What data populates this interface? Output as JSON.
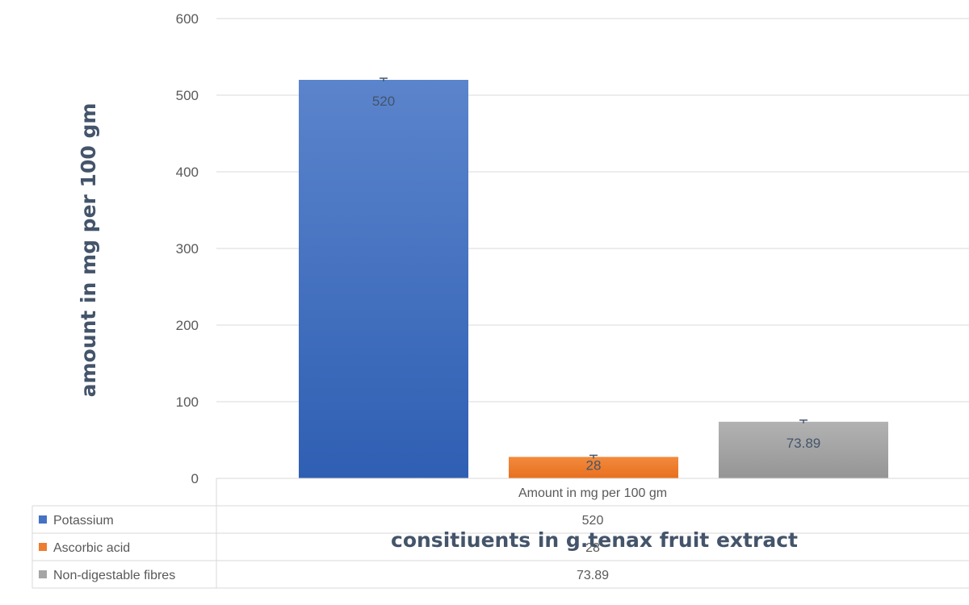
{
  "chart_data": {
    "type": "bar",
    "title": "",
    "ylabel": "amount in mg per 100 gm",
    "xlabel": "consitiuents in g.tenax fruit extract",
    "ylim": [
      0,
      600
    ],
    "yticks": [
      0,
      100,
      200,
      300,
      400,
      500,
      600
    ],
    "grid": true,
    "legend": "data-table",
    "categories": [
      "Amount in mg per 100 gm"
    ],
    "series": [
      {
        "name": "Potassium",
        "color": "#4472c4",
        "values": [
          520
        ],
        "label": "520"
      },
      {
        "name": "Ascorbic acid",
        "color": "#ed7d31",
        "values": [
          28
        ],
        "label": "28"
      },
      {
        "name": "Non-digestable fibres",
        "color": "#a5a5a5",
        "values": [
          73.89
        ],
        "label": "73.89"
      }
    ]
  }
}
